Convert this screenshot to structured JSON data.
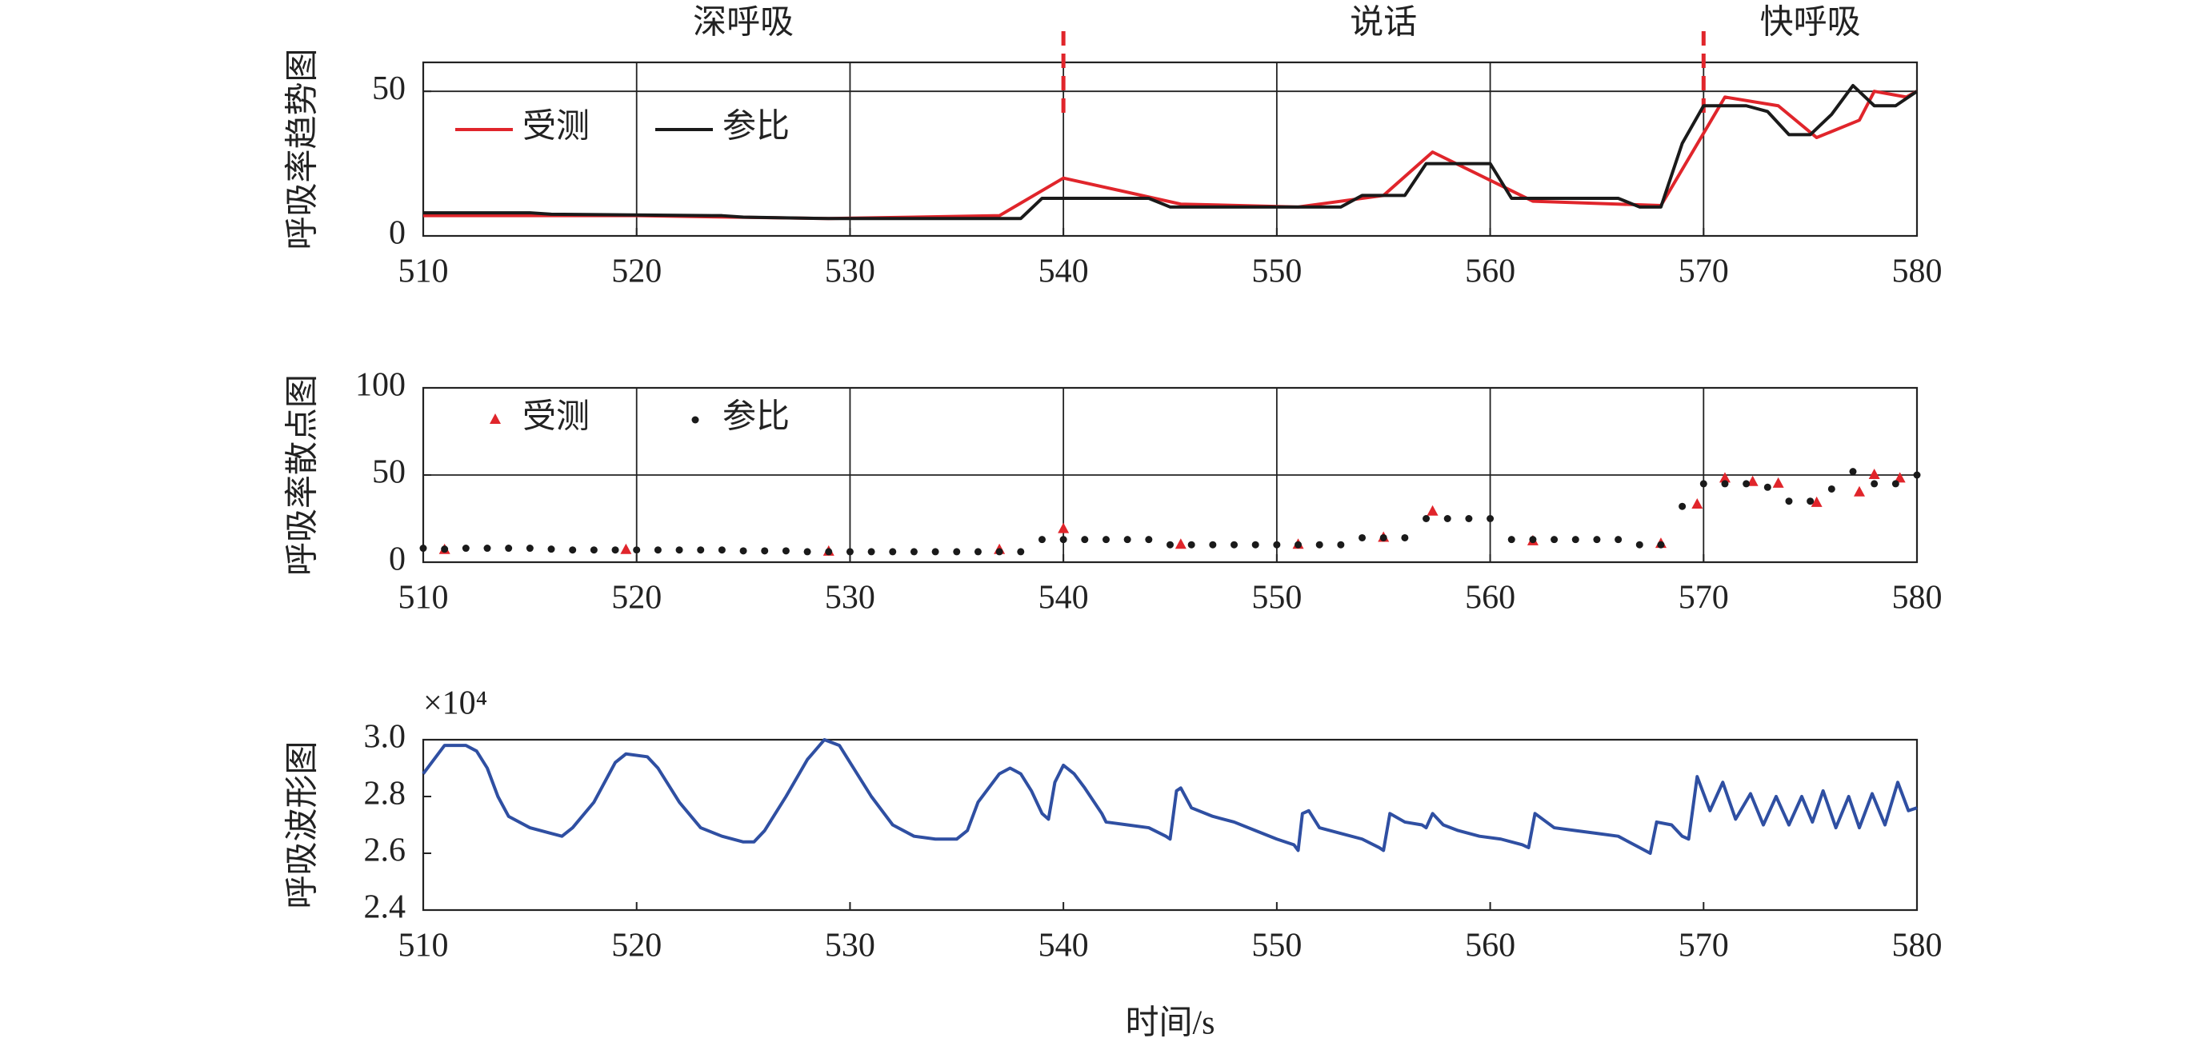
{
  "chart_data": [
    {
      "type": "line",
      "ylabel": "呼吸率趋势图",
      "xlim": [
        510,
        580
      ],
      "xticks": [
        510,
        520,
        530,
        540,
        550,
        560,
        570,
        580
      ],
      "ylim": [
        0,
        60
      ],
      "yticks": [
        0,
        50
      ],
      "grid": true,
      "legend": "upper left",
      "phases": [
        "深呼吸",
        "说话",
        "快呼吸"
      ],
      "dividers": [
        540,
        570
      ],
      "divider_color": "#e0252b",
      "series": [
        {
          "name": "受测",
          "color": "#e0252b",
          "x": [
            510,
            520,
            529,
            537,
            540,
            545.5,
            551,
            555,
            557.3,
            562,
            568,
            571,
            573.5,
            575.3,
            577.3,
            578,
            579.5,
            580
          ],
          "values": [
            7,
            7,
            6,
            7,
            20,
            11,
            10,
            14,
            29,
            12,
            10.5,
            48,
            45,
            34,
            40,
            50,
            48,
            50
          ]
        },
        {
          "name": "参比",
          "color": "#1a1a1a",
          "x": [
            510,
            515,
            516,
            524,
            525,
            529,
            538,
            539,
            544,
            545,
            553,
            554,
            556,
            557,
            560,
            561,
            566,
            567,
            568,
            569,
            570,
            572,
            573,
            574,
            575,
            576,
            577,
            578,
            579,
            580
          ],
          "values": [
            8,
            8,
            7.5,
            7,
            6.5,
            6,
            6,
            13,
            13,
            10,
            10,
            14,
            14,
            25,
            25,
            13,
            13,
            10,
            10,
            32,
            45,
            45,
            43,
            35,
            35,
            42,
            52,
            45,
            45,
            50
          ]
        }
      ]
    },
    {
      "type": "scatter",
      "ylabel": "呼吸率散点图",
      "xlim": [
        510,
        580
      ],
      "xticks": [
        510,
        520,
        530,
        540,
        550,
        560,
        570,
        580
      ],
      "ylim": [
        0,
        100
      ],
      "yticks": [
        0,
        50,
        100
      ],
      "grid": true,
      "legend": "upper left",
      "series": [
        {
          "name": "受测",
          "color": "#e0252b",
          "marker": "triangle",
          "x": [
            511,
            519.5,
            529,
            537,
            540,
            545.5,
            551,
            555,
            557.3,
            562,
            568,
            569.7,
            571,
            572.3,
            573.5,
            575.3,
            577.3,
            578,
            579.2
          ],
          "values": [
            7,
            7,
            6,
            7,
            19,
            10,
            10,
            14,
            29,
            12,
            10.5,
            33,
            48,
            46,
            45,
            34,
            40,
            50,
            48
          ]
        },
        {
          "name": "参比",
          "color": "#1a1a1a",
          "marker": "dot",
          "x": [
            510,
            511,
            512,
            513,
            514,
            515,
            516,
            517,
            518,
            519,
            520,
            521,
            522,
            523,
            524,
            525,
            526,
            527,
            528,
            529,
            530,
            531,
            532,
            533,
            534,
            535,
            536,
            537,
            538,
            539,
            540,
            541,
            542,
            543,
            544,
            545,
            546,
            547,
            548,
            549,
            550,
            551,
            552,
            553,
            554,
            555,
            556,
            557,
            558,
            559,
            560,
            561,
            562,
            563,
            564,
            565,
            566,
            567,
            568,
            569,
            570,
            571,
            572,
            573,
            574,
            575,
            576,
            577,
            578,
            579,
            580
          ],
          "values": [
            8,
            7.5,
            8,
            8,
            8,
            8,
            7.5,
            7,
            7,
            7,
            7,
            7,
            7,
            7,
            7,
            6.5,
            6.5,
            6.5,
            6,
            6,
            6,
            6,
            6,
            6,
            6,
            6,
            6,
            6,
            6,
            13,
            13,
            13,
            13,
            13,
            13,
            10,
            10,
            10,
            10,
            10,
            10,
            10,
            10,
            10,
            14,
            14,
            14,
            25,
            25,
            25,
            25,
            13,
            13,
            13,
            13,
            13,
            13,
            10,
            10,
            32,
            45,
            45,
            45,
            43,
            35,
            35,
            42,
            52,
            45,
            45,
            50
          ]
        }
      ]
    },
    {
      "type": "line",
      "ylabel": "呼吸波形图",
      "xlabel": "时间/s",
      "y_multiplier": "×10⁴",
      "xlim": [
        510,
        580
      ],
      "xticks": [
        510,
        520,
        530,
        540,
        550,
        560,
        570,
        580
      ],
      "ylim": [
        24000,
        30000
      ],
      "yticks": [
        {
          "value": 24000,
          "label": "2.4"
        },
        {
          "value": 26000,
          "label": "2.6"
        },
        {
          "value": 28000,
          "label": "2.8"
        },
        {
          "value": 30000,
          "label": "3.0"
        }
      ],
      "grid": false,
      "series": [
        {
          "color": "#2f4fa2",
          "x": [
            510,
            510.5,
            511,
            512,
            512.5,
            513,
            513.5,
            514,
            515,
            516,
            516.5,
            517,
            518,
            519,
            519.5,
            520.5,
            521,
            522,
            523,
            524,
            525,
            525.5,
            526,
            527,
            528,
            528.8,
            529.5,
            530,
            531,
            532,
            533,
            534,
            535,
            535.5,
            536,
            537,
            537.5,
            538,
            538.5,
            539,
            539.3,
            539.6,
            540,
            540.5,
            541,
            541.8,
            542,
            543,
            544,
            544.8,
            545,
            545.3,
            545.5,
            546,
            547,
            548,
            549,
            550,
            550.8,
            551,
            551.2,
            551.5,
            552,
            553,
            554,
            554.8,
            555,
            555.3,
            556,
            556.8,
            557,
            557.3,
            557.8,
            558.5,
            559.5,
            560.5,
            561.5,
            561.8,
            562.1,
            563,
            564,
            565,
            566,
            567,
            567.5,
            567.8,
            568.5,
            569,
            569.3,
            569.7,
            570.3,
            570.9,
            571.5,
            572.2,
            572.8,
            573.4,
            574,
            574.6,
            575.1,
            575.6,
            576.2,
            576.8,
            577.3,
            577.9,
            578.5,
            579.1,
            579.6,
            580
          ],
          "values": [
            28800,
            29300,
            29800,
            29800,
            29600,
            29000,
            28000,
            27300,
            26900,
            26700,
            26600,
            26900,
            27800,
            29200,
            29500,
            29400,
            29000,
            27800,
            26900,
            26600,
            26400,
            26400,
            26800,
            28000,
            29300,
            30000,
            29800,
            29200,
            28000,
            27000,
            26600,
            26500,
            26500,
            26800,
            27800,
            28800,
            29000,
            28800,
            28200,
            27400,
            27200,
            28500,
            29100,
            28800,
            28300,
            27400,
            27100,
            27000,
            26900,
            26600,
            26500,
            28200,
            28300,
            27600,
            27300,
            27100,
            26800,
            26500,
            26300,
            26100,
            27400,
            27500,
            26900,
            26700,
            26500,
            26200,
            26100,
            27400,
            27100,
            27000,
            26900,
            27400,
            27000,
            26800,
            26600,
            26500,
            26300,
            26200,
            27400,
            26900,
            26800,
            26700,
            26600,
            26200,
            26000,
            27100,
            27000,
            26600,
            26500,
            28700,
            27500,
            28500,
            27200,
            28100,
            27000,
            28000,
            27000,
            28000,
            27100,
            28200,
            26900,
            28000,
            26900,
            28100,
            27000,
            28500,
            27500,
            27600
          ]
        }
      ]
    }
  ]
}
